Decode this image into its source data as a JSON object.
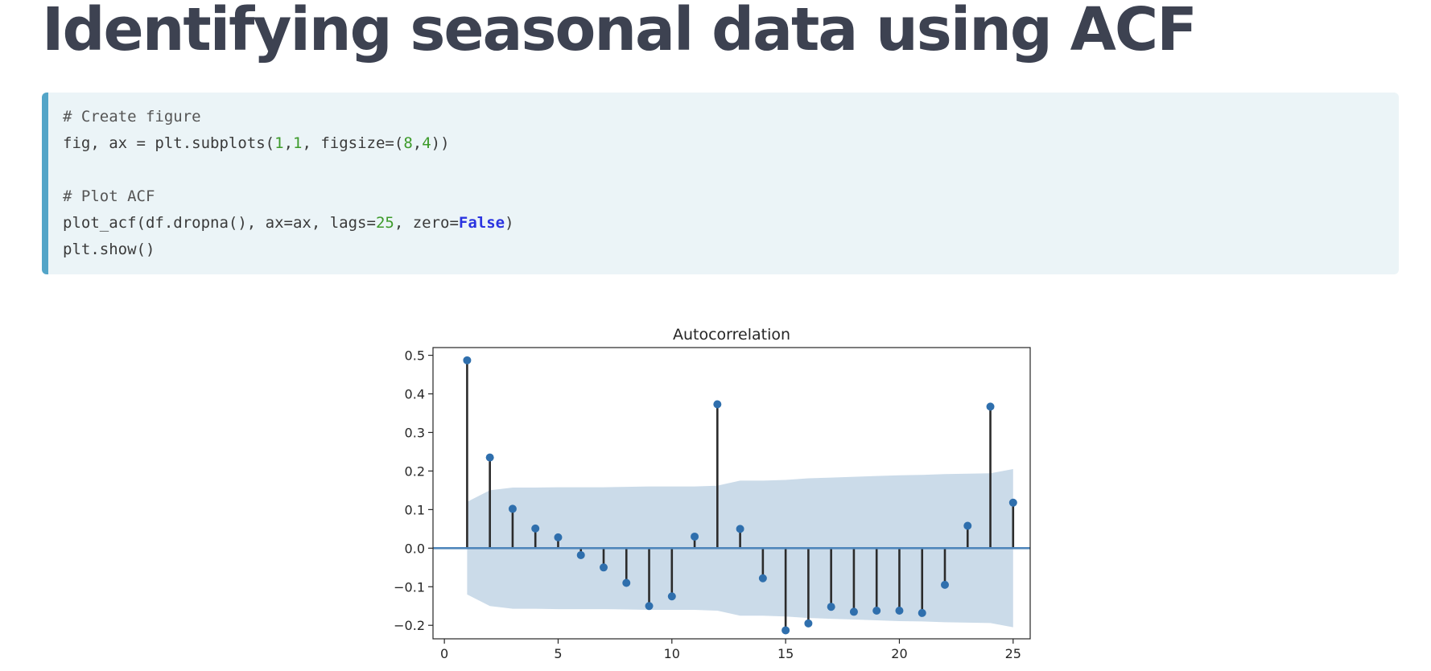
{
  "slide": {
    "title": "Identifying seasonal data using ACF"
  },
  "code": {
    "lines": [
      [
        {
          "t": "# Create figure",
          "k": "comment"
        }
      ],
      [
        {
          "t": "fig, ax = plt.subplots(",
          "k": "plain"
        },
        {
          "t": "1",
          "k": "num"
        },
        {
          "t": ",",
          "k": "plain"
        },
        {
          "t": "1",
          "k": "num"
        },
        {
          "t": ", figsize=(",
          "k": "plain"
        },
        {
          "t": "8",
          "k": "num"
        },
        {
          "t": ",",
          "k": "plain"
        },
        {
          "t": "4",
          "k": "num"
        },
        {
          "t": "))",
          "k": "plain"
        }
      ],
      [],
      [
        {
          "t": "# Plot ACF",
          "k": "comment"
        }
      ],
      [
        {
          "t": "plot_acf(df.dropna(), ax=ax, lags=",
          "k": "plain"
        },
        {
          "t": "25",
          "k": "num"
        },
        {
          "t": ", zero=",
          "k": "plain"
        },
        {
          "t": "False",
          "k": "kw"
        },
        {
          "t": ")",
          "k": "plain"
        }
      ],
      [
        {
          "t": "plt.show()",
          "k": "plain"
        }
      ]
    ]
  },
  "chart_data": {
    "type": "stem",
    "title": "Autocorrelation",
    "xlabel": "",
    "ylabel": "",
    "xlim": [
      -0.5,
      25.75
    ],
    "ylim": [
      -0.235,
      0.52
    ],
    "xticks": [
      0,
      5,
      10,
      15,
      20,
      25
    ],
    "xtick_labels": [
      "0",
      "5",
      "10",
      "15",
      "20",
      "25"
    ],
    "yticks": [
      -0.2,
      -0.1,
      0.0,
      0.1,
      0.2,
      0.3,
      0.4,
      0.5
    ],
    "ytick_labels": [
      "−0.2",
      "−0.1",
      "0.0",
      "0.1",
      "0.2",
      "0.3",
      "0.4",
      "0.5"
    ],
    "lags": [
      1,
      2,
      3,
      4,
      5,
      6,
      7,
      8,
      9,
      10,
      11,
      12,
      13,
      14,
      15,
      16,
      17,
      18,
      19,
      20,
      21,
      22,
      23,
      24,
      25
    ],
    "values": [
      0.487,
      0.235,
      0.102,
      0.051,
      0.028,
      -0.018,
      -0.05,
      -0.09,
      -0.15,
      -0.125,
      0.03,
      0.373,
      0.05,
      -0.078,
      -0.213,
      -0.195,
      -0.152,
      -0.165,
      -0.162,
      -0.162,
      -0.168,
      -0.095,
      0.058,
      0.367,
      0.118
    ],
    "confidence_band": [
      0.12,
      0.15,
      0.157,
      0.157,
      0.158,
      0.158,
      0.158,
      0.159,
      0.16,
      0.16,
      0.16,
      0.162,
      0.175,
      0.175,
      0.177,
      0.181,
      0.183,
      0.185,
      0.187,
      0.189,
      0.19,
      0.192,
      0.193,
      0.194,
      0.205
    ],
    "grid": false,
    "colors": {
      "marker": "#2f6fad",
      "stem": "#2b2b2b",
      "band": "#c8d9e8",
      "zero_line": "#4f86bb",
      "axes": "#262626"
    }
  }
}
